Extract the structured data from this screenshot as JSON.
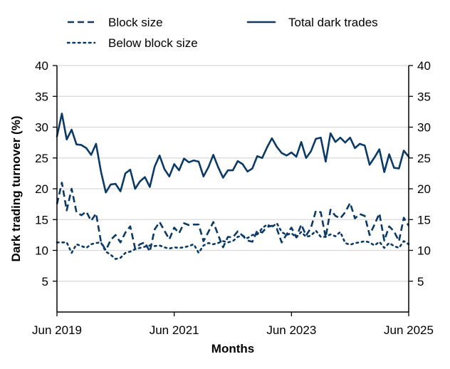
{
  "chart_data": {
    "type": "line",
    "title": "",
    "xlabel": "Months",
    "ylabel": "Dark trading turnover (%)",
    "ylim": [
      0,
      40
    ],
    "yticks": [
      5,
      10,
      15,
      20,
      25,
      30,
      35,
      40
    ],
    "y_axis_mirrored_right": true,
    "grid": "horizontal",
    "legend_position": "top",
    "x_start": "Jun 2019",
    "x_end": "Jun 2025",
    "frequency": "monthly",
    "xticks": [
      {
        "label": "Jun 2019",
        "index": 0
      },
      {
        "label": "Jun 2021",
        "index": 24
      },
      {
        "label": "Jun 2023",
        "index": 48
      },
      {
        "label": "Jun 2025",
        "index": 72
      }
    ],
    "line_color": "#0b3a66",
    "series": [
      {
        "name": "Block size",
        "style": "dashed",
        "values": [
          17.5,
          21,
          16.5,
          20,
          16.2,
          15.7,
          16.3,
          14.8,
          16,
          11.4,
          10,
          11.7,
          12.5,
          11.3,
          12.9,
          13.9,
          10.3,
          11,
          11.3,
          9.8,
          13.4,
          14.6,
          13.2,
          11.8,
          13.7,
          12.8,
          14.4,
          14.1,
          14.2,
          14.2,
          11.5,
          13,
          14.6,
          12.5,
          10.5,
          12.2,
          12.1,
          13.1,
          12.4,
          11.6,
          11.4,
          13.2,
          12.9,
          13.8,
          14,
          13.5,
          11.3,
          12.6,
          13.7,
          12.1,
          14.2,
          12.4,
          13.7,
          16.4,
          16.2,
          12.1,
          16.6,
          15.6,
          15.2,
          16.2,
          17.7,
          15.2,
          15.9,
          15.6,
          12.5,
          14.2,
          16,
          11.6,
          13.9,
          13.1,
          11.5,
          15.3,
          14
        ]
      },
      {
        "name": "Below block size",
        "style": "dotted",
        "values": [
          11.3,
          11.3,
          11.3,
          9.6,
          11,
          10.7,
          10.4,
          11,
          11.2,
          11.3,
          9.8,
          9.3,
          8.6,
          8.8,
          9.6,
          9.8,
          10.2,
          10.4,
          10.6,
          10.8,
          10.7,
          10.8,
          10.5,
          10.3,
          10.5,
          10.4,
          10.5,
          10.7,
          11,
          9.6,
          10.8,
          11.2,
          11,
          11.2,
          11.5,
          11.3,
          11.5,
          12.2,
          12.4,
          12,
          12.5,
          12.6,
          13.6,
          14.2,
          13.8,
          14.4,
          13,
          12.5,
          12.8,
          12.1,
          13,
          12.2,
          12.4,
          13.2,
          12.2,
          12.2,
          12.6,
          12.3,
          13,
          11.2,
          10.9,
          11.2,
          11.3,
          11.5,
          11.3,
          10.8,
          11.4,
          10.4,
          11.2,
          10.7,
          10.4,
          11.5,
          11
        ]
      },
      {
        "name": "Total dark trades",
        "style": "solid",
        "values": [
          28.5,
          32.2,
          28,
          29.6,
          27.2,
          27.1,
          26.6,
          25.5,
          27.3,
          22.8,
          19.4,
          20.7,
          20.8,
          19.6,
          22.5,
          23.1,
          20,
          21.2,
          21.9,
          20.3,
          23.6,
          25.4,
          23.2,
          22,
          24,
          23,
          24.9,
          24.3,
          24.6,
          24.4,
          22,
          23.5,
          25.5,
          23.5,
          21.8,
          23,
          23,
          24.5,
          24,
          22.8,
          23.3,
          25.3,
          25,
          26.7,
          28.2,
          26.8,
          25.8,
          25.4,
          25.9,
          25.2,
          27.6,
          25,
          26.1,
          28.1,
          28.3,
          24.4,
          29,
          27.6,
          28.3,
          27.5,
          28.3,
          26.6,
          27.3,
          27,
          23.9,
          25.1,
          26.4,
          22.7,
          25.6,
          23.4,
          23.3,
          26.2,
          25.2
        ]
      }
    ]
  }
}
